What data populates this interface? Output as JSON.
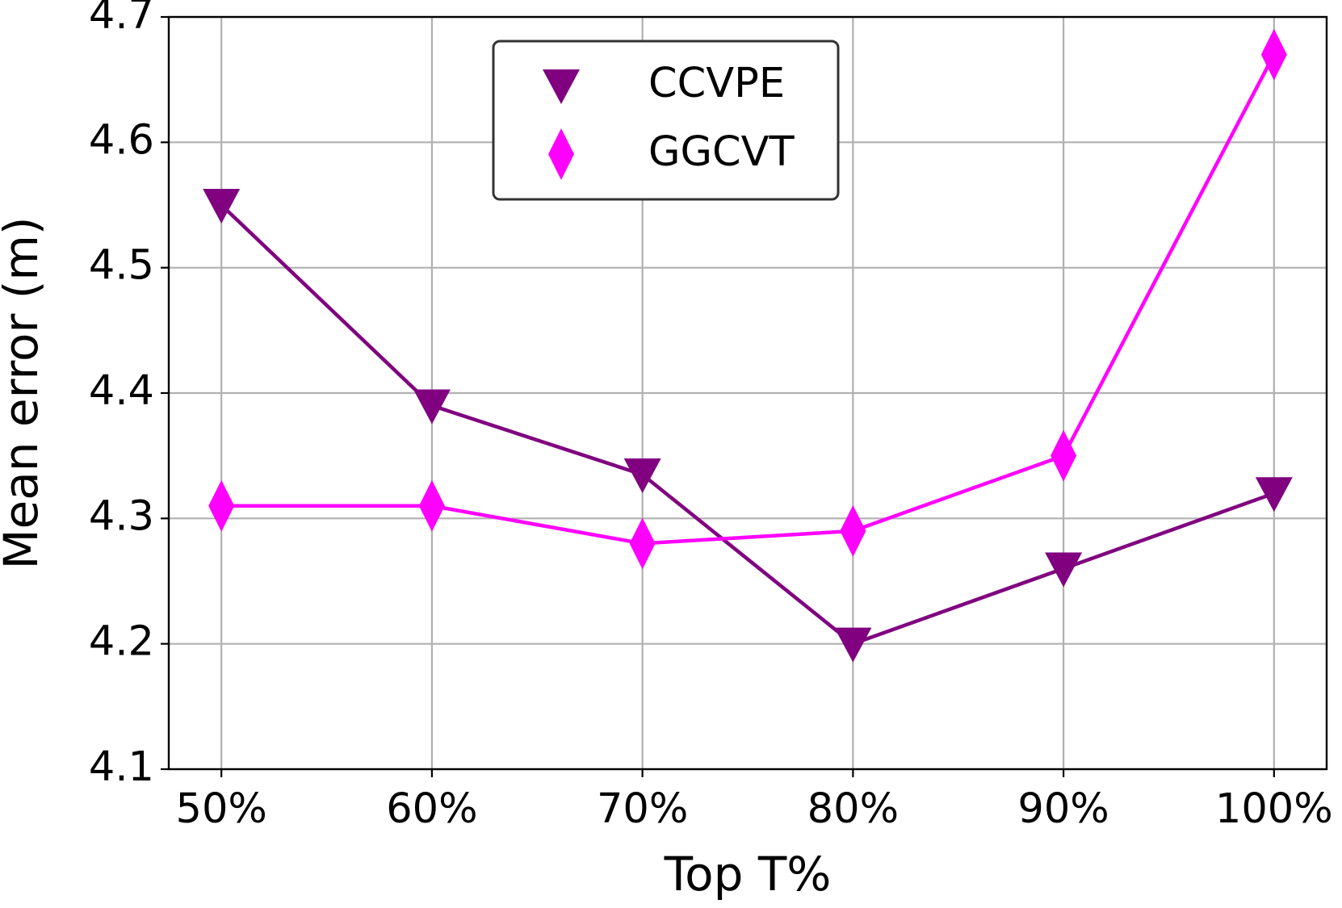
{
  "chart_data": {
    "type": "line",
    "x_label": "Top T%",
    "y_label": "Mean error (m)",
    "categories": [
      "50%",
      "60%",
      "70%",
      "80%",
      "90%",
      "100%"
    ],
    "series": [
      {
        "name": "CCVPE",
        "color": "#800080",
        "marker": "triangle-down",
        "values": [
          4.55,
          4.39,
          4.335,
          4.2,
          4.26,
          4.32
        ]
      },
      {
        "name": "GGCVT",
        "color": "#ff00ff",
        "marker": "diamond",
        "values": [
          4.31,
          4.31,
          4.28,
          4.29,
          4.35,
          4.67
        ]
      }
    ],
    "ylim": [
      4.1,
      4.7
    ],
    "yticks": [
      4.1,
      4.2,
      4.3,
      4.4,
      4.5,
      4.6,
      4.7
    ],
    "grid": true,
    "legend": "upper center"
  }
}
